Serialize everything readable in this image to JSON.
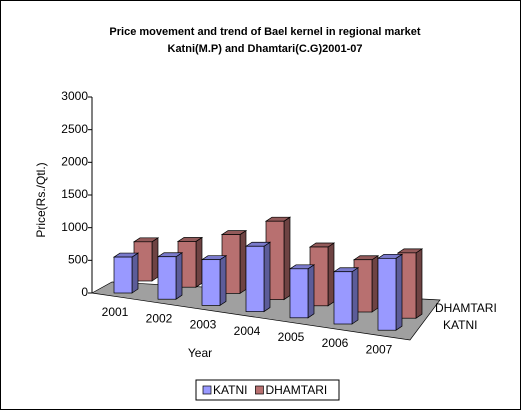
{
  "chart_data": {
    "type": "bar3d",
    "title": [
      "Price movement and trend of Bael kernel in regional market",
      "Katni(M.P) and Dhamtari(C.G)2001-07"
    ],
    "y_label": "Price(Rs./Qtl.)",
    "x_label": "Year",
    "categories": [
      "2001",
      "2002",
      "2003",
      "2004",
      "2005",
      "2006",
      "2007"
    ],
    "series": [
      {
        "name": "KATNI",
        "color": "#9999ff",
        "values": [
          550,
          650,
          700,
          1000,
          750,
          800,
          1100
        ]
      },
      {
        "name": "DHAMTARI",
        "color": "#b87070",
        "values": [
          600,
          700,
          900,
          1200,
          900,
          800,
          1000
        ]
      }
    ],
    "ylim": [
      0,
      3000
    ],
    "yticks": [
      0,
      500,
      1000,
      1500,
      2000,
      2500,
      3000
    ],
    "legend": "bottom"
  }
}
